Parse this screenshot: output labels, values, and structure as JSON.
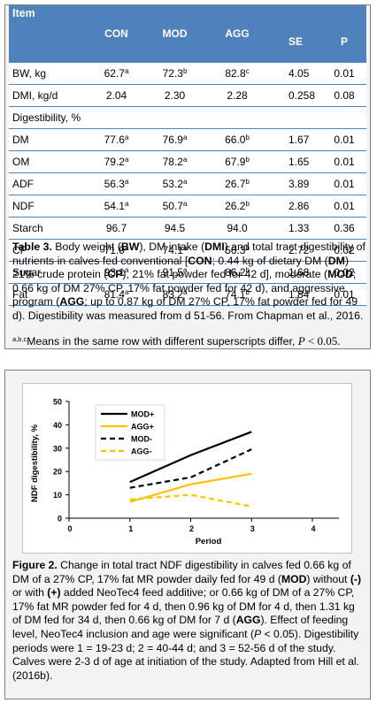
{
  "table3": {
    "headers": [
      "Item",
      "CON",
      "MOD",
      "AGG",
      "SE",
      "P"
    ],
    "rows": [
      {
        "label": "BW, kg",
        "con": "62.7",
        "con_sup": "a",
        "mod": "72.3",
        "mod_sup": "b",
        "agg": "82.8",
        "agg_sup": "c",
        "se": "4.05",
        "p": "0.01"
      },
      {
        "label": "DMI, kg/d",
        "con": "2.04",
        "con_sup": "",
        "mod": "2.30",
        "mod_sup": "",
        "agg": "2.28",
        "agg_sup": "",
        "se": "0.258",
        "p": "0.08"
      },
      {
        "label": "DM",
        "con": "77.6",
        "con_sup": "a",
        "mod": "76.9",
        "mod_sup": "a",
        "agg": "66.0",
        "agg_sup": "b",
        "se": "1.67",
        "p": "0.01"
      },
      {
        "label": "OM",
        "con": "79.2",
        "con_sup": "a",
        "mod": "78.2",
        "mod_sup": "a",
        "agg": "67.9",
        "agg_sup": "b",
        "se": "1.65",
        "p": "0.01"
      },
      {
        "label": "ADF",
        "con": "56.3",
        "con_sup": "a",
        "mod": "53.2",
        "mod_sup": "a",
        "agg": "26.7",
        "agg_sup": "b",
        "se": "3.89",
        "p": "0.01"
      },
      {
        "label": "NDF",
        "con": "54.1",
        "con_sup": "a",
        "mod": "50.7",
        "mod_sup": "a",
        "agg": "26.2",
        "agg_sup": "b",
        "se": "2.86",
        "p": "0.01"
      },
      {
        "label": "Starch",
        "con": "96.7",
        "con_sup": "",
        "mod": "94.5",
        "mod_sup": "",
        "agg": "94.0",
        "agg_sup": "",
        "se": "1.33",
        "p": "0.36"
      },
      {
        "label": "CP",
        "con": "71.9",
        "con_sup": "a",
        "mod": "74.1",
        "mod_sup": "a",
        "agg": "56.3",
        "agg_sup": "b",
        "se": "2.72",
        "p": "0.02"
      },
      {
        "label": "Sugar",
        "con": "93.1",
        "con_sup": "a",
        "mod": "91.5",
        "mod_sup": "a",
        "agg": "86.2",
        "agg_sup": "b",
        "se": "1.68",
        "p": "0.02"
      },
      {
        "label": "Fat",
        "con": "81.4",
        "con_sup": "a",
        "mod": "83.2",
        "mod_sup": "a",
        "agg": "74.1",
        "agg_sup": "b",
        "se": "1.84",
        "p": "0.01"
      }
    ],
    "subheader": "Digestibility, %",
    "caption": {
      "t1": "Table 3.",
      "t2": " Body weight (",
      "t3": "BW",
      "t4": "), DM intake (",
      "t5": "DMI",
      "t6": ") and total tract digestibility of nutrients in calves fed conventional [",
      "t7": "CON",
      "t8": "; 0.44 kg of dietary DM (",
      "t9": "DM",
      "t10": ") 21% crude protein (",
      "t11": "CP",
      "t12": "), 21% fat powder fed for 42 d], moderate (",
      "t13": "MOD",
      "t14": "; 0.66 kg of DM 27% CP, 17% fat powder fed for 42 d), and aggressive program (",
      "t15": "AGG",
      "t16": "; up to 0.87 kg of DM 27% CP, 17% fat powder fed for 49 d). Digestibility was measured from d 51-56. From Chapman et al., 2016."
    },
    "footnote": {
      "sups": "a,b,c",
      "text": "Means in the same row with different superscripts differ, ",
      "p": "P",
      "tail": " < 0.05."
    }
  },
  "figure2": {
    "colors": {
      "black": "#000000",
      "orange": "#ffc000"
    },
    "chart_data": {
      "type": "line",
      "xlabel": "Period",
      "ylabel": "NDF digestibility, %",
      "x_ticks": [
        "0",
        "1",
        "2",
        "3",
        "4"
      ],
      "y_ticks": [
        "0",
        "10",
        "20",
        "30",
        "40",
        "50"
      ],
      "xlim": [
        0,
        4
      ],
      "ylim": [
        0,
        50
      ],
      "x": [
        1,
        2,
        3
      ],
      "series": [
        {
          "name": "MOD+",
          "values": [
            15.5,
            27,
            37
          ],
          "color": "#000000",
          "dashed": false
        },
        {
          "name": "AGG+",
          "values": [
            7,
            14.5,
            19
          ],
          "color": "#ffc000",
          "dashed": false
        },
        {
          "name": "MOD-",
          "values": [
            13,
            17.5,
            29.5
          ],
          "color": "#000000",
          "dashed": true
        },
        {
          "name": "AGG-",
          "values": [
            8,
            10,
            5
          ],
          "color": "#ffc000",
          "dashed": true
        }
      ],
      "legend": "top-left"
    },
    "caption": {
      "t1": "Figure 2.",
      "t2": " Change in total tract NDF digestibility in calves fed 0.66 kg of DM of a 27% CP, 17% fat MR powder daily fed for 49 d (",
      "t3": "MOD",
      "t4": ") without ",
      "t5": "(-)",
      "t6": " or with ",
      "t7": "(+)",
      "t8": " added NeoTec4 feed additive; or 0.66 kg of DM of a 27% CP, 17% fat MR powder fed for 4 d, then 0.96 kg of DM for 4 d, then 1.31 kg of DM fed for 34 d, then 0.66 kg of DM for 7 d (",
      "t9": "AGG",
      "t10": "). Effect of feeding level, NeoTec4 inclusion and age were significant (",
      "t11": "P",
      "t12": " < 0.05). Digestibility periods were 1 = 19-23 d; 2 = 40-44 d; and 3 = 52-56 d of the study. Calves were 2-3 d of age at initiation of the study. Adapted from Hill et al. (2016b)."
    }
  }
}
